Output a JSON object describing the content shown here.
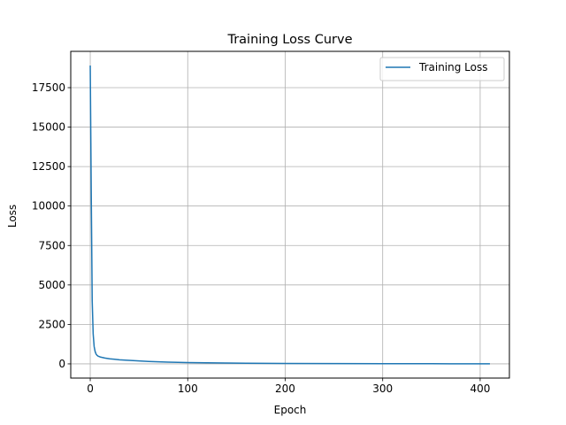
{
  "chart_data": {
    "type": "line",
    "title": "Training Loss Curve",
    "xlabel": "Epoch",
    "ylabel": "Loss",
    "xlim": [
      -20,
      430
    ],
    "ylim": [
      -900,
      19800
    ],
    "xticks": [
      0,
      100,
      200,
      300,
      400
    ],
    "yticks": [
      0,
      2500,
      5000,
      7500,
      10000,
      12500,
      15000,
      17500
    ],
    "grid": true,
    "legend_position": "upper right",
    "series": [
      {
        "name": "Training Loss",
        "color": "#1f77b4",
        "x": [
          0,
          1,
          2,
          3,
          4,
          5,
          6,
          7,
          8,
          10,
          12,
          15,
          20,
          25,
          30,
          40,
          50,
          60,
          70,
          80,
          90,
          100,
          120,
          140,
          160,
          180,
          200,
          250,
          300,
          350,
          400,
          410
        ],
        "y": [
          18900,
          11000,
          4000,
          1900,
          1100,
          780,
          620,
          540,
          490,
          440,
          410,
          370,
          320,
          290,
          260,
          220,
          185,
          155,
          130,
          110,
          95,
          82,
          65,
          52,
          42,
          35,
          28,
          18,
          12,
          8,
          5,
          4
        ]
      }
    ]
  }
}
